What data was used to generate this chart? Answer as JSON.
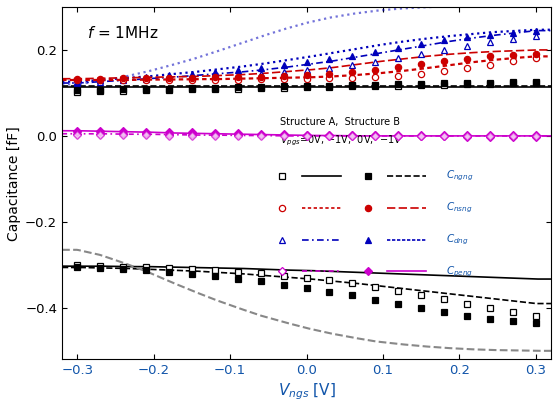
{
  "ylabel": "Capacitance [fF]",
  "xlim": [
    -0.32,
    0.32
  ],
  "ylim": [
    -0.52,
    0.3
  ],
  "yticks": [
    -0.4,
    -0.2,
    0.0,
    0.2
  ],
  "xticks": [
    -0.3,
    -0.2,
    -0.1,
    0.0,
    0.1,
    0.2,
    0.3
  ],
  "black": "#000000",
  "red": "#cc0000",
  "blue": "#0000bb",
  "magenta": "#cc00cc",
  "gray": "#888888",
  "x_pts": [
    -0.3,
    -0.27,
    -0.24,
    -0.21,
    -0.18,
    -0.15,
    -0.12,
    -0.09,
    -0.06,
    -0.03,
    0.0,
    0.03,
    0.06,
    0.09,
    0.12,
    0.15,
    0.18,
    0.21,
    0.24,
    0.27,
    0.3
  ],
  "Cngng_A0_s": [
    0.103,
    0.104,
    0.105,
    0.106,
    0.107,
    0.108,
    0.109,
    0.11,
    0.111,
    0.112,
    0.113,
    0.114,
    0.115,
    0.116,
    0.117,
    0.118,
    0.119,
    0.12,
    0.121,
    0.122,
    0.123
  ],
  "Cngng_B0_s": [
    0.106,
    0.107,
    0.108,
    0.109,
    0.11,
    0.111,
    0.112,
    0.113,
    0.114,
    0.115,
    0.116,
    0.117,
    0.118,
    0.119,
    0.12,
    0.121,
    0.122,
    0.123,
    0.124,
    0.125,
    0.126
  ],
  "Cnsng_A0_s": [
    0.13,
    0.13,
    0.13,
    0.13,
    0.131,
    0.131,
    0.131,
    0.131,
    0.132,
    0.132,
    0.133,
    0.134,
    0.135,
    0.137,
    0.14,
    0.144,
    0.15,
    0.158,
    0.166,
    0.174,
    0.181
  ],
  "Cnsng_B0_s": [
    0.133,
    0.133,
    0.134,
    0.134,
    0.135,
    0.135,
    0.136,
    0.137,
    0.138,
    0.14,
    0.142,
    0.145,
    0.149,
    0.154,
    0.161,
    0.168,
    0.174,
    0.18,
    0.185,
    0.188,
    0.191
  ],
  "Cdng_A0_s": [
    0.123,
    0.126,
    0.129,
    0.132,
    0.134,
    0.136,
    0.138,
    0.141,
    0.144,
    0.148,
    0.153,
    0.158,
    0.165,
    0.173,
    0.182,
    0.191,
    0.2,
    0.21,
    0.218,
    0.225,
    0.232
  ],
  "Cdng_B0_s": [
    0.126,
    0.129,
    0.133,
    0.137,
    0.141,
    0.145,
    0.149,
    0.154,
    0.159,
    0.165,
    0.172,
    0.179,
    0.187,
    0.196,
    0.205,
    0.214,
    0.222,
    0.229,
    0.235,
    0.24,
    0.245
  ],
  "Cpng_Am1_s": [
    0.012,
    0.011,
    0.011,
    0.01,
    0.009,
    0.008,
    0.007,
    0.006,
    0.005,
    0.004,
    0.003,
    0.002,
    0.002,
    0.001,
    0.001,
    0.001,
    0.001,
    0.001,
    0.001,
    0.001,
    0.001
  ],
  "Cpng_A0_s": [
    0.005,
    0.005,
    0.004,
    0.004,
    0.003,
    0.003,
    0.002,
    0.002,
    0.001,
    0.001,
    0.0,
    0.0,
    0.0,
    -0.001,
    -0.001,
    -0.001,
    -0.001,
    -0.002,
    -0.002,
    -0.002,
    -0.002
  ],
  "Cpng_Bm1_s": [
    0.008,
    0.008,
    0.007,
    0.006,
    0.005,
    0.005,
    0.004,
    0.003,
    0.003,
    0.002,
    0.001,
    0.001,
    0.001,
    0.001,
    0.0,
    0.0,
    0.0,
    0.0,
    0.0,
    0.0,
    0.0
  ],
  "Cpng_B0_s": [
    0.002,
    0.001,
    0.001,
    0.001,
    0.0,
    0.0,
    0.0,
    0.0,
    0.0,
    -0.001,
    -0.001,
    -0.001,
    -0.001,
    -0.001,
    -0.001,
    -0.001,
    -0.001,
    -0.001,
    -0.001,
    -0.001,
    -0.001
  ],
  "Cngng_negA0_s": [
    -0.3,
    -0.302,
    -0.304,
    -0.306,
    -0.308,
    -0.31,
    -0.313,
    -0.316,
    -0.32,
    -0.325,
    -0.33,
    -0.336,
    -0.343,
    -0.351,
    -0.36,
    -0.37,
    -0.38,
    -0.39,
    -0.4,
    -0.409,
    -0.418
  ],
  "Cngng_negB0_s": [
    -0.305,
    -0.307,
    -0.31,
    -0.313,
    -0.317,
    -0.321,
    -0.326,
    -0.332,
    -0.338,
    -0.346,
    -0.354,
    -0.362,
    -0.371,
    -0.381,
    -0.391,
    -0.401,
    -0.41,
    -0.418,
    -0.425,
    -0.431,
    -0.436
  ],
  "Cngng_A0_l": [
    -0.303,
    -0.303,
    -0.304,
    -0.304,
    -0.305,
    -0.306,
    -0.307,
    -0.308,
    -0.31,
    -0.312,
    -0.313,
    -0.315,
    -0.317,
    -0.319,
    -0.321,
    -0.323,
    -0.325,
    -0.327,
    -0.329,
    -0.331,
    -0.333
  ],
  "Cngng_B0_l": [
    -0.306,
    -0.307,
    -0.308,
    -0.31,
    -0.312,
    -0.314,
    -0.317,
    -0.32,
    -0.324,
    -0.328,
    -0.332,
    -0.337,
    -0.342,
    -0.348,
    -0.354,
    -0.36,
    -0.366,
    -0.372,
    -0.378,
    -0.384,
    -0.39
  ],
  "Cngng_Bm1_l": [
    -0.265,
    -0.277,
    -0.295,
    -0.315,
    -0.338,
    -0.36,
    -0.381,
    -0.4,
    -0.418,
    -0.433,
    -0.447,
    -0.459,
    -0.469,
    -0.478,
    -0.484,
    -0.489,
    -0.493,
    -0.496,
    -0.498,
    -0.499,
    -0.5
  ],
  "Cnsng_A0_l": [
    0.13,
    0.13,
    0.13,
    0.131,
    0.131,
    0.132,
    0.132,
    0.133,
    0.134,
    0.135,
    0.136,
    0.138,
    0.141,
    0.145,
    0.15,
    0.156,
    0.163,
    0.17,
    0.176,
    0.181,
    0.185
  ],
  "Cnsng_B0_l": [
    0.133,
    0.134,
    0.135,
    0.136,
    0.137,
    0.138,
    0.14,
    0.142,
    0.145,
    0.149,
    0.153,
    0.158,
    0.165,
    0.172,
    0.178,
    0.184,
    0.189,
    0.193,
    0.196,
    0.198,
    0.2
  ],
  "Cdng_A0_l": [
    0.123,
    0.126,
    0.129,
    0.133,
    0.136,
    0.14,
    0.144,
    0.148,
    0.153,
    0.159,
    0.166,
    0.173,
    0.182,
    0.191,
    0.2,
    0.209,
    0.218,
    0.226,
    0.233,
    0.239,
    0.245
  ],
  "Cdng_B0_l": [
    0.126,
    0.13,
    0.134,
    0.138,
    0.143,
    0.148,
    0.154,
    0.16,
    0.167,
    0.175,
    0.183,
    0.192,
    0.201,
    0.21,
    0.218,
    0.225,
    0.231,
    0.236,
    0.241,
    0.244,
    0.247
  ],
  "Cdng_Bm1_l": [
    0.12,
    0.128,
    0.137,
    0.149,
    0.163,
    0.178,
    0.195,
    0.213,
    0.231,
    0.248,
    0.263,
    0.275,
    0.284,
    0.291,
    0.296,
    0.299,
    0.301,
    0.302,
    0.303,
    0.303,
    0.303
  ],
  "Cpng_A0_l": [
    0.012,
    0.011,
    0.01,
    0.009,
    0.007,
    0.006,
    0.005,
    0.004,
    0.003,
    0.002,
    0.001,
    0.001,
    0.0,
    0.0,
    0.0,
    0.0,
    0.0,
    0.0,
    0.0,
    0.0,
    0.0
  ],
  "Cpng_Am1_l": [
    0.005,
    0.005,
    0.004,
    0.004,
    0.003,
    0.002,
    0.002,
    0.001,
    0.001,
    0.0,
    0.0,
    0.0,
    0.0,
    0.0,
    0.0,
    0.0,
    0.0,
    0.0,
    0.0,
    0.0,
    0.0
  ],
  "legend_header1": "Structure A,  Structure B",
  "legend_header2_pre": "V",
  "legend_header2_sub": "pgs",
  "legend_header2_post": "=0V, -1V,  0V,  -1V",
  "freq_label": "f",
  "freq_val": "=1MHz"
}
